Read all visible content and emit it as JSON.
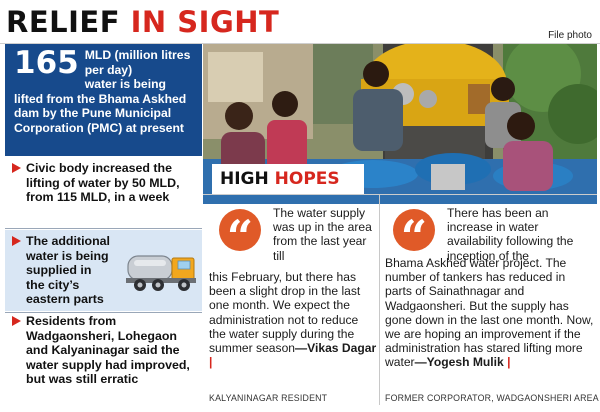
{
  "header": {
    "headline_part1": "RELIEF",
    "headline_part2": "IN SIGHT",
    "credit": "File photo"
  },
  "lead": {
    "number": "165",
    "text_after_number": "MLD (million litres per day)",
    "text_rest": "water is being lifted from the Bhama Askhed dam by the Pune Municipal Corporation (PMC) at present"
  },
  "bullets": [
    "Civic body increased the lifting of water by 50 MLD, from 115 MLD, in a week",
    "The additional water is being supplied in the city’s eastern parts",
    "Residents from Wadgaonsheri, Lohegaon and Kalyaninagar said the water supply had improved, but was still erratic"
  ],
  "section_title": {
    "part1": "HIGH",
    "part2": "HOPES"
  },
  "quotes": [
    {
      "text_top": "The water supply was up in the area from the last year till",
      "text_bottom": "this February, but there has been a slight drop in the last one month. We expect the administration not to reduce the water supply during the summer season",
      "speaker": "—Vikas Dagar",
      "role": "KALYANINAGAR RESIDENT"
    },
    {
      "text_top": "There has been an increase in water availability following the inception of the",
      "text_bottom": "Bhama Askhed water project. The number of tankers has reduced in parts of Sainathnagar and Wadgaonsheri. But the supply has gone down in the last one month. Now, we are hoping an improvement if the administration has stared lifting more water",
      "speaker": "—Yogesh Mulik",
      "role": "FORMER CORPORATOR, WADGAONSHERI AREA"
    }
  ],
  "colors": {
    "accent_red": "#d6271e",
    "lead_blue": "#174a8c",
    "quote_orange": "#e05a28",
    "bullet_highlight": "#d9e6f4"
  }
}
